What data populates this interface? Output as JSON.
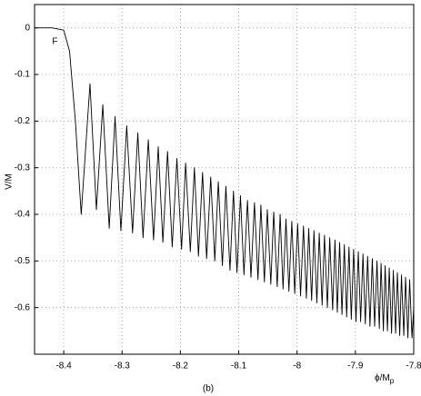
{
  "chart_data": {
    "type": "line",
    "ylabel": "V/M",
    "xlabel": "ϕ/M",
    "xlabel_sub": "p",
    "caption": "(b)",
    "annotation": {
      "text": "F",
      "x": -8.415,
      "y": -0.03
    },
    "color": "#000000",
    "grid": true,
    "xlim": [
      -8.45,
      -7.8
    ],
    "ylim": [
      -0.7,
      0.05
    ],
    "xticks": [
      -8.4,
      -8.3,
      -8.2,
      -8.1,
      -8,
      -7.9,
      -7.8
    ],
    "yticks": [
      0,
      -0.1,
      -0.2,
      -0.3,
      -0.4,
      -0.5,
      -0.6
    ],
    "x": [
      -8.45,
      -8.42,
      -8.4,
      -8.39,
      -8.38,
      -8.37,
      -8.355,
      -8.344,
      -8.333,
      -8.322,
      -8.312,
      -8.302,
      -8.292,
      -8.282,
      -8.273,
      -8.264,
      -8.255,
      -8.246,
      -8.238,
      -8.23,
      -8.222,
      -8.214,
      -8.206,
      -8.198,
      -8.191,
      -8.183,
      -8.176,
      -8.169,
      -8.162,
      -8.155,
      -8.148,
      -8.141,
      -8.135,
      -8.128,
      -8.122,
      -8.115,
      -8.109,
      -8.103,
      -8.097,
      -8.091,
      -8.085,
      -8.079,
      -8.073,
      -8.067,
      -8.062,
      -8.056,
      -8.051,
      -8.045,
      -8.04,
      -8.034,
      -8.029,
      -8.024,
      -8.019,
      -8.014,
      -8.009,
      -8.004,
      -7.999,
      -7.994,
      -7.989,
      -7.984,
      -7.98,
      -7.975,
      -7.971,
      -7.966,
      -7.962,
      -7.957,
      -7.953,
      -7.948,
      -7.944,
      -7.939,
      -7.935,
      -7.931,
      -7.927,
      -7.923,
      -7.919,
      -7.915,
      -7.911,
      -7.907,
      -7.903,
      -7.899,
      -7.895,
      -7.891,
      -7.887,
      -7.883,
      -7.879,
      -7.875,
      -7.871,
      -7.867,
      -7.863,
      -7.859,
      -7.856,
      -7.852,
      -7.849,
      -7.845,
      -7.842,
      -7.838,
      -7.835,
      -7.831,
      -7.828,
      -7.824,
      -7.821,
      -7.817,
      -7.814,
      -7.81,
      -7.807,
      -7.803,
      -7.8
    ],
    "values": [
      0,
      0,
      -0.005,
      -0.05,
      -0.2,
      -0.4,
      -0.12,
      -0.39,
      -0.165,
      -0.43,
      -0.19,
      -0.435,
      -0.21,
      -0.44,
      -0.225,
      -0.45,
      -0.24,
      -0.455,
      -0.255,
      -0.46,
      -0.265,
      -0.47,
      -0.28,
      -0.475,
      -0.29,
      -0.48,
      -0.3,
      -0.49,
      -0.31,
      -0.495,
      -0.32,
      -0.5,
      -0.33,
      -0.51,
      -0.34,
      -0.52,
      -0.35,
      -0.525,
      -0.36,
      -0.53,
      -0.37,
      -0.535,
      -0.375,
      -0.54,
      -0.38,
      -0.545,
      -0.39,
      -0.55,
      -0.395,
      -0.555,
      -0.4,
      -0.56,
      -0.41,
      -0.565,
      -0.415,
      -0.57,
      -0.42,
      -0.575,
      -0.425,
      -0.58,
      -0.43,
      -0.585,
      -0.435,
      -0.59,
      -0.44,
      -0.595,
      -0.445,
      -0.6,
      -0.45,
      -0.605,
      -0.455,
      -0.61,
      -0.46,
      -0.615,
      -0.465,
      -0.62,
      -0.47,
      -0.625,
      -0.475,
      -0.63,
      -0.48,
      -0.63,
      -0.485,
      -0.635,
      -0.49,
      -0.64,
      -0.495,
      -0.64,
      -0.5,
      -0.645,
      -0.505,
      -0.65,
      -0.51,
      -0.65,
      -0.515,
      -0.655,
      -0.52,
      -0.655,
      -0.525,
      -0.66,
      -0.53,
      -0.66,
      -0.535,
      -0.665,
      -0.54,
      -0.665,
      -0.6
    ]
  }
}
